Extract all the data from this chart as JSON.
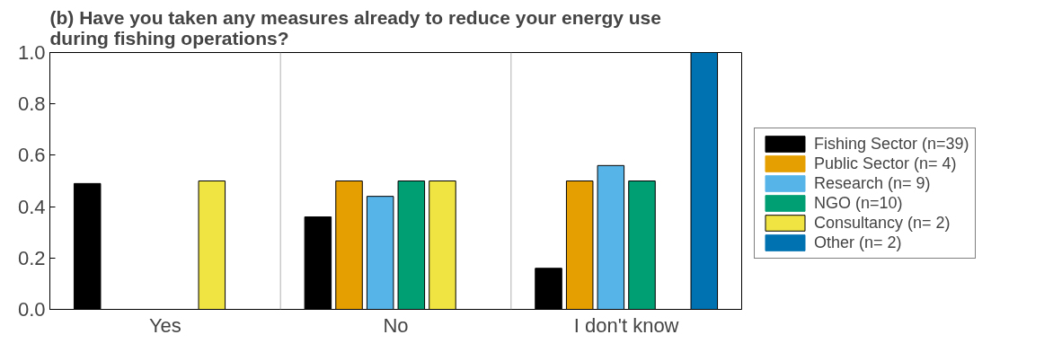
{
  "chart_data": {
    "type": "bar",
    "title": "(b) Have you taken any measures already to reduce your energy use during fishing operations?",
    "categories": [
      "Yes",
      "No",
      "I don't know"
    ],
    "series": [
      {
        "name": "Fishing Sector (n=39)",
        "color": "#000000",
        "values": [
          0.49,
          0.36,
          0.16
        ]
      },
      {
        "name": "Public Sector (n= 4)",
        "color": "#e69f00",
        "values": [
          0,
          0.5,
          0.5
        ]
      },
      {
        "name": "Research (n= 9)",
        "color": "#56b4e9",
        "values": [
          0,
          0.44,
          0.56
        ]
      },
      {
        "name": "NGO (n=10)",
        "color": "#009e73",
        "values": [
          0,
          0.5,
          0.5
        ]
      },
      {
        "name": "Consultancy (n= 2)",
        "color": "#f0e442",
        "values": [
          0.5,
          0.5,
          0
        ]
      },
      {
        "name": "Other (n= 2)",
        "color": "#0072b2",
        "values": [
          0,
          0,
          1.0
        ]
      }
    ],
    "ylim": [
      0,
      1
    ],
    "yticks": [
      {
        "value": 0,
        "label": "0.0"
      },
      0.2,
      0.4,
      0.6,
      0.8,
      {
        "value": 1,
        "label": "1.0"
      }
    ],
    "grid": "x",
    "legend": "right"
  }
}
